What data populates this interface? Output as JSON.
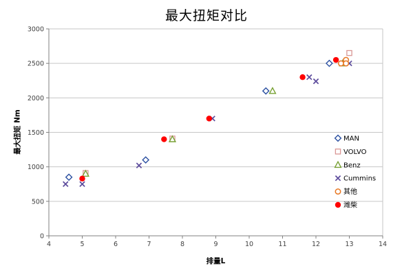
{
  "chart_data": {
    "type": "scatter",
    "title": "最大扭矩对比",
    "xlabel": "排量L",
    "ylabel": "最大扭矩 Nm",
    "xlim": [
      4,
      14
    ],
    "ylim": [
      0,
      3000
    ],
    "x_ticks": [
      4,
      5,
      6,
      7,
      8,
      9,
      10,
      11,
      12,
      13,
      14
    ],
    "y_ticks": [
      0,
      500,
      1000,
      1500,
      2000,
      2500,
      3000
    ],
    "grid": "horizontal-only",
    "legend_position": "right-inside",
    "colors": {
      "gridline": "#c6c6c6",
      "axis": "#808080",
      "plot_border": "#c6c6c6",
      "background": "#ffffff"
    },
    "series": [
      {
        "name": "MAN",
        "marker": "diamond-open",
        "color": "#2b50a1",
        "points": [
          [
            4.6,
            850
          ],
          [
            6.9,
            1100
          ],
          [
            10.5,
            2100
          ],
          [
            12.4,
            2500
          ]
        ]
      },
      {
        "name": "VOLVO",
        "marker": "square-open",
        "color": "#d99694",
        "points": [
          [
            5.1,
            910
          ],
          [
            7.7,
            1410
          ],
          [
            13.0,
            2650
          ]
        ]
      },
      {
        "name": "Benz",
        "marker": "triangle-open",
        "color": "#77a033",
        "points": [
          [
            5.1,
            900
          ],
          [
            7.7,
            1400
          ],
          [
            10.7,
            2100
          ],
          [
            12.8,
            2500
          ]
        ]
      },
      {
        "name": "Cummins",
        "marker": "x",
        "color": "#5c4b9c",
        "points": [
          [
            4.5,
            750
          ],
          [
            5.0,
            750
          ],
          [
            6.7,
            1020
          ],
          [
            8.9,
            1700
          ],
          [
            11.8,
            2300
          ],
          [
            12.0,
            2240
          ],
          [
            13.0,
            2500
          ]
        ]
      },
      {
        "name": "其他",
        "marker": "circle-open",
        "color": "#e87722",
        "points": [
          [
            12.75,
            2500
          ],
          [
            12.9,
            2550
          ],
          [
            12.9,
            2500
          ]
        ]
      },
      {
        "name": "潍柴",
        "marker": "circle-filled",
        "color": "#ff0000",
        "points": [
          [
            5.0,
            830
          ],
          [
            7.45,
            1400
          ],
          [
            8.8,
            1700
          ],
          [
            11.6,
            2300
          ],
          [
            12.6,
            2550
          ]
        ]
      }
    ]
  }
}
